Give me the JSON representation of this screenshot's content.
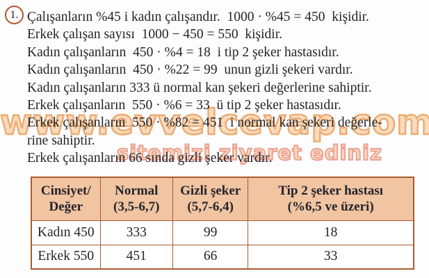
{
  "problem": {
    "number": "1.",
    "lines": [
      "Çalışanların %45 i kadın çalışandır.  1000 · %45 = 450  kişidir.",
      "Erkek çalışan sayısı  1000 − 450 = 550  kişidir.",
      "Kadın çalışanların  450 · %4 = 18  i tip 2 şeker hastasıdır.",
      "Kadın çalışanların  450 · %22 = 99  unun gizli şekeri vardır.",
      "Kadın çalışanların 333 ü normal kan şekeri değerlerine sahiptir.",
      "Erkek çalışanların  550 · %6 = 33  ü tip 2 şeker hastasıdır.",
      "Erkek çalışanların  550 · %82 = 451  i normal kan şekeri değerle-",
      "rine sahiptir.",
      "Erkek çalışanların 66 sında gizli şeker vardır."
    ]
  },
  "watermark": {
    "url_text": "www.evvelcevap.com",
    "tagline_text": "sitemizi ziyaret ediniz",
    "fill_color": "#f9d6b2",
    "url_outline_color": "#eb9e5c",
    "tagline_outline_color": "#ea9181"
  },
  "table": {
    "headers": [
      "Cinsiyet/\nDeğer",
      "Normal\n(3,5-6,7)",
      "Gizli şeker\n(5,7-6,4)",
      "Tip 2 şeker hastası\n(%6,5 ve üzeri)"
    ],
    "rows": [
      [
        "Kadın 450",
        "333",
        "99",
        "18"
      ],
      [
        "Erkek 550",
        "451",
        "66",
        "33"
      ]
    ],
    "header_bg_color": "#f1c4a2",
    "border_color": "#a85a30"
  },
  "colors": {
    "text": "#24242a",
    "badge_ring": "#b5532b",
    "background": "#fdfdfd"
  }
}
